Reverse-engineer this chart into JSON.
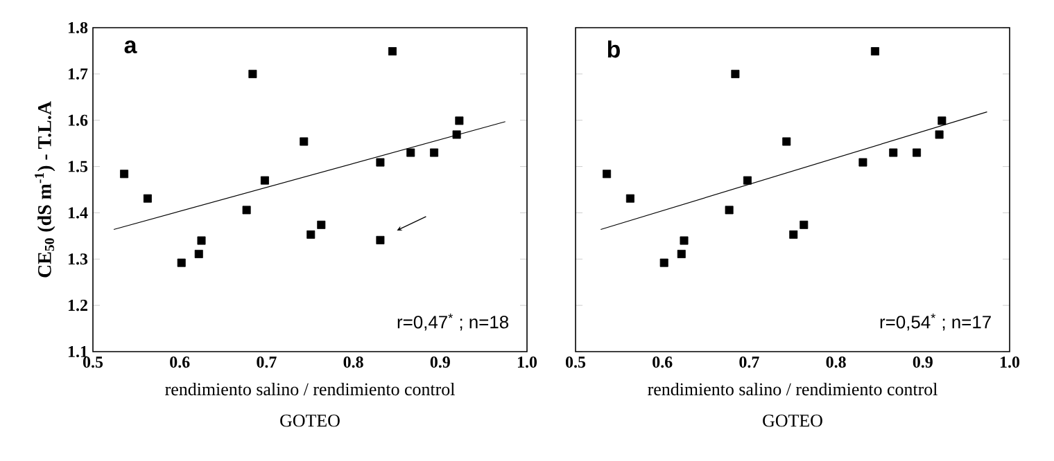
{
  "chart_data": [
    {
      "type": "scatter",
      "title": "a",
      "xlabel": "rendimiento salino  /  rendimiento control",
      "ylabel": "CE$_{50}$  (dS m$^{-1}$)  -  T.L.A",
      "annotations": [
        "r=0,47$^{*}$ ; n=18",
        "GOTEO"
      ],
      "xlim": [
        0.5,
        1.0
      ],
      "ylim": [
        1.1,
        1.8
      ],
      "xticks": [
        0.5,
        0.6,
        0.7,
        0.8,
        0.9,
        {
          "value": 1,
          "label": "1.0"
        }
      ],
      "yticks": [
        1.1,
        1.2,
        1.3,
        1.4,
        1.5,
        1.6,
        1.7,
        1.8
      ],
      "series": [
        {
          "type": "scatter",
          "marker": "square",
          "color": "#000000",
          "x": [
            0.536,
            0.563,
            0.602,
            0.622,
            0.625,
            0.677,
            0.684,
            0.698,
            0.743,
            0.751,
            0.763,
            0.831,
            0.845,
            0.866,
            0.893,
            0.919,
            0.922,
            0.831
          ],
          "values": [
            1.484,
            1.431,
            1.292,
            1.311,
            1.34,
            1.406,
            1.7,
            1.47,
            1.554,
            1.353,
            1.374,
            1.509,
            1.749,
            1.53,
            1.53,
            1.569,
            1.599,
            1.341
          ]
        },
        {
          "type": "line",
          "marker": "none",
          "color": "#000000",
          "x": [
            0.524,
            0.975
          ],
          "values": [
            1.364,
            1.597
          ]
        }
      ]
    },
    {
      "type": "scatter",
      "title": "b",
      "xlabel": "rendimiento salino  /  rendimiento control",
      "annotations": [
        "r=0,54$^{*}$ ; n=17",
        "GOTEO"
      ],
      "xlim": [
        0.5,
        1.0
      ],
      "ylim": [
        1.1,
        1.8
      ],
      "xticks": [
        0.5,
        0.6,
        0.7,
        0.8,
        0.9,
        {
          "value": 1,
          "label": "1.0"
        }
      ],
      "yticks": [
        1.1,
        1.2,
        1.3,
        1.4,
        1.5,
        1.6,
        1.7,
        1.8
      ],
      "tick_labels": "x",
      "series": [
        {
          "type": "scatter",
          "marker": "square",
          "color": "#000000",
          "x": [
            0.536,
            0.563,
            0.602,
            0.622,
            0.625,
            0.677,
            0.684,
            0.698,
            0.743,
            0.751,
            0.763,
            0.831,
            0.845,
            0.866,
            0.893,
            0.919,
            0.922
          ],
          "values": [
            1.484,
            1.431,
            1.292,
            1.311,
            1.34,
            1.406,
            1.7,
            1.47,
            1.554,
            1.353,
            1.374,
            1.509,
            1.749,
            1.53,
            1.53,
            1.569,
            1.599
          ]
        },
        {
          "type": "line",
          "marker": "none",
          "color": "#000000",
          "x": [
            0.529,
            0.974
          ],
          "values": [
            1.364,
            1.618
          ]
        }
      ]
    }
  ]
}
